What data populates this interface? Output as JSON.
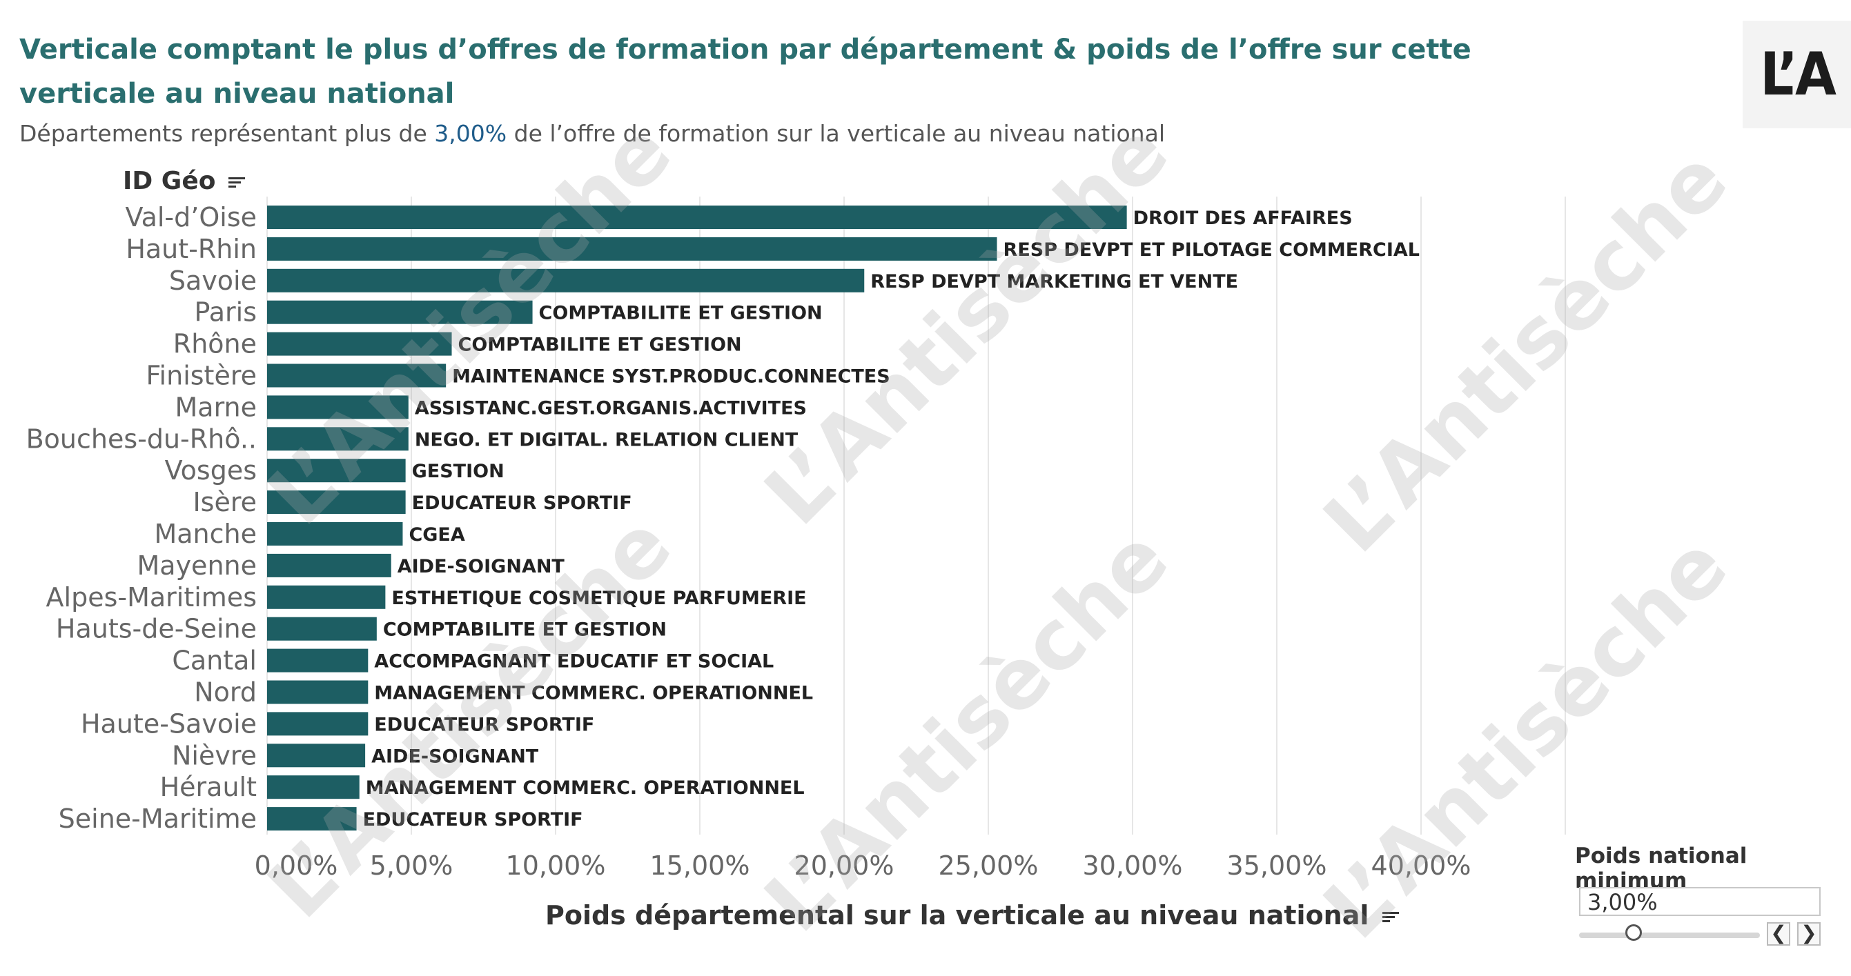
{
  "title": "Verticale comptant le plus d’offres de formation par département & poids de l’offre sur cette verticale au niveau national",
  "subtitle": {
    "prefix": "Départements représentant plus de ",
    "threshold": "3,00%",
    "suffix": " de l’offre de formation sur la verticale au niveau national"
  },
  "logo_text": "L’A",
  "watermark_text": "L’Antisèche",
  "y_header": "ID Géo",
  "colors": {
    "bar": "#1d5e63",
    "title": "#2a6e6f",
    "accent": "#1f5c8a",
    "grid": "#e6e6e6"
  },
  "chart_data": {
    "type": "bar",
    "orientation": "horizontal",
    "categories": [
      "Val-d’Oise",
      "Haut-Rhin",
      "Savoie",
      "Paris",
      "Rhône",
      "Finistère",
      "Marne",
      "Bouches-du-Rhô..",
      "Vosges",
      "Isère",
      "Manche",
      "Mayenne",
      "Alpes-Maritimes",
      "Hauts-de-Seine",
      "Cantal",
      "Nord",
      "Haute-Savoie",
      "Nièvre",
      "Hérault",
      "Seine-Maritime"
    ],
    "values": [
      29.8,
      25.3,
      20.7,
      9.2,
      6.4,
      6.2,
      4.9,
      4.9,
      4.8,
      4.8,
      4.7,
      4.3,
      4.1,
      3.8,
      3.5,
      3.5,
      3.5,
      3.4,
      3.2,
      3.1
    ],
    "labels": [
      "DROIT DES AFFAIRES",
      "RESP DEVPT ET PILOTAGE COMMERCIAL",
      "RESP DEVPT MARKETING ET VENTE",
      "COMPTABILITE ET GESTION",
      "COMPTABILITE ET GESTION",
      "MAINTENANCE SYST.PRODUC.CONNECTES",
      "ASSISTANC.GEST.ORGANIS.ACTIVITES",
      "NEGO. ET DIGITAL. RELATION CLIENT",
      "GESTION",
      "EDUCATEUR SPORTIF",
      "CGEA",
      "AIDE-SOIGNANT",
      "ESTHETIQUE COSMETIQUE PARFUMERIE",
      "COMPTABILITE ET GESTION",
      "ACCOMPAGNANT EDUCATIF ET SOCIAL",
      "MANAGEMENT COMMERC. OPERATIONNEL",
      "EDUCATEUR SPORTIF",
      "AIDE-SOIGNANT",
      "MANAGEMENT COMMERC. OPERATIONNEL",
      "EDUCATEUR SPORTIF"
    ],
    "xlabel": "Poids départemental sur la verticale au niveau national",
    "x_ticks": [
      "0,00%",
      "5,00%",
      "10,00%",
      "15,00%",
      "20,00%",
      "25,00%",
      "30,00%",
      "35,00%",
      "40,00%"
    ],
    "x_tick_values": [
      0,
      5,
      10,
      15,
      20,
      25,
      30,
      35,
      40
    ],
    "xlim": [
      0,
      45
    ],
    "grid": true
  },
  "slider": {
    "title": "Poids national minimum",
    "value": "3,00%",
    "position_fraction": 0.3,
    "prev_label": "❮",
    "next_label": "❯"
  }
}
